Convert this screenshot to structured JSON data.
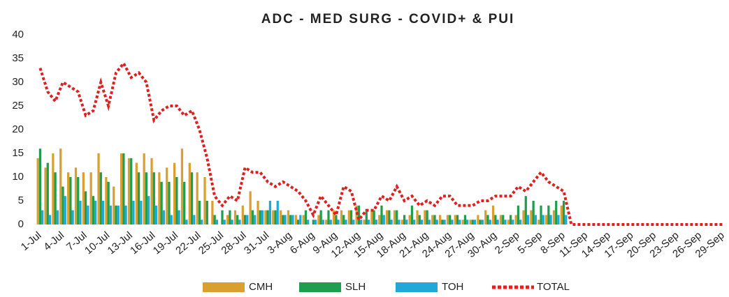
{
  "chart_data": {
    "type": "bar",
    "title": "ADC - MED SURG - COVID+ & PUI",
    "categories": [
      "1-Jul",
      null,
      null,
      "4-Jul",
      null,
      null,
      "7-Jul",
      null,
      null,
      "10-Jul",
      null,
      null,
      "13-Jul",
      null,
      null,
      "16-Jul",
      null,
      null,
      "19-Jul",
      null,
      null,
      "22-Jul",
      null,
      null,
      "25-Jul",
      null,
      null,
      "28-Jul",
      null,
      null,
      "31-Jul",
      null,
      null,
      "3-Aug",
      null,
      null,
      "6-Aug",
      null,
      null,
      "9-Aug",
      null,
      null,
      "12-Aug",
      null,
      null,
      "15-Aug",
      null,
      null,
      "18-Aug",
      null,
      null,
      "21-Aug",
      null,
      null,
      "24-Aug",
      null,
      null,
      "27-Aug",
      null,
      null,
      "30-Aug",
      null,
      null,
      "2-Sep",
      null,
      null,
      "5-Sep",
      null,
      null,
      "8-Sep",
      null,
      null,
      "11-Sep",
      null,
      null,
      "14-Sep",
      null,
      null,
      "17-Sep",
      null,
      null,
      "20-Sep",
      null,
      null,
      "23-Sep",
      null,
      null,
      "26-Sep",
      null,
      null,
      "29-Sep"
    ],
    "series": [
      {
        "name": "CMH",
        "color": "#d9a030",
        "values": [
          14,
          12,
          15,
          16,
          11,
          12,
          11,
          11,
          15,
          10,
          8,
          15,
          14,
          13,
          15,
          14,
          11,
          12,
          13,
          16,
          13,
          11,
          10,
          5,
          0,
          2,
          3,
          4,
          7,
          5,
          3,
          3,
          3,
          3,
          2,
          2,
          0,
          2,
          1,
          3,
          3,
          3,
          4,
          1,
          3,
          2,
          3,
          3,
          1,
          2,
          3,
          3,
          2,
          2,
          2,
          2,
          1,
          1,
          2,
          3,
          4,
          2,
          1,
          2,
          3,
          3,
          1,
          2,
          3,
          4,
          null,
          null,
          null,
          null,
          null,
          null,
          null,
          null,
          null,
          null,
          null,
          null,
          null,
          null,
          null,
          null,
          null,
          null,
          null,
          null,
          null
        ]
      },
      {
        "name": "SLH",
        "color": "#1e9e4e",
        "values": [
          16,
          13,
          11,
          8,
          10,
          10,
          7,
          6,
          11,
          9,
          4,
          15,
          14,
          11,
          11,
          11,
          9,
          9,
          10,
          9,
          11,
          5,
          5,
          2,
          3,
          3,
          2,
          2,
          3,
          3,
          3,
          3,
          2,
          2,
          1,
          3,
          1,
          3,
          3,
          2,
          2,
          3,
          4,
          3,
          3,
          4,
          3,
          3,
          2,
          4,
          2,
          3,
          2,
          1,
          2,
          2,
          2,
          1,
          1,
          2,
          2,
          2,
          2,
          4,
          6,
          5,
          4,
          4,
          5,
          5,
          null,
          null,
          null,
          null,
          null,
          null,
          null,
          null,
          null,
          null,
          null,
          null,
          null,
          null,
          null,
          null,
          null,
          null,
          null,
          null,
          null
        ]
      },
      {
        "name": "TOH",
        "color": "#22a8d8",
        "values": [
          3,
          2,
          3,
          6,
          3,
          5,
          4,
          5,
          5,
          4,
          4,
          4,
          5,
          5,
          6,
          4,
          3,
          2,
          3,
          1,
          2,
          1,
          0,
          1,
          1,
          1,
          1,
          2,
          2,
          3,
          5,
          5,
          2,
          2,
          2,
          1,
          1,
          1,
          1,
          1,
          1,
          1,
          1,
          1,
          1,
          2,
          1,
          1,
          1,
          1,
          1,
          1,
          1,
          1,
          1,
          1,
          1,
          1,
          1,
          1,
          1,
          1,
          1,
          1,
          2,
          2,
          2,
          2,
          2,
          2,
          null,
          null,
          null,
          null,
          null,
          null,
          null,
          null,
          null,
          null,
          null,
          null,
          null,
          null,
          null,
          null,
          null,
          null,
          null,
          null,
          null
        ]
      },
      {
        "name": "TOTAL",
        "color": "#e02020",
        "type": "line",
        "values": [
          33,
          28,
          26,
          30,
          29,
          28,
          23,
          24,
          30,
          25,
          32,
          34,
          31,
          32,
          30,
          22,
          24,
          25,
          25,
          23,
          24,
          20,
          14,
          6,
          4,
          6,
          5,
          12,
          11,
          11,
          9,
          8,
          9,
          8,
          7,
          5,
          2,
          6,
          4,
          2,
          8,
          7,
          1,
          3,
          3,
          6,
          5,
          8,
          5,
          6,
          4,
          5,
          4,
          6,
          6,
          4,
          4,
          4,
          5,
          5,
          6,
          6,
          6,
          8,
          7,
          9,
          11,
          9,
          8,
          7,
          0,
          0,
          0,
          0,
          0,
          0,
          0,
          0,
          0,
          0,
          0,
          0,
          0,
          0,
          0,
          0,
          0,
          0,
          0,
          0,
          0
        ]
      }
    ],
    "ylim": [
      0,
      40
    ],
    "yticks": [
      0,
      5,
      10,
      15,
      20,
      25,
      30,
      35,
      40
    ],
    "legend": "bottom"
  }
}
